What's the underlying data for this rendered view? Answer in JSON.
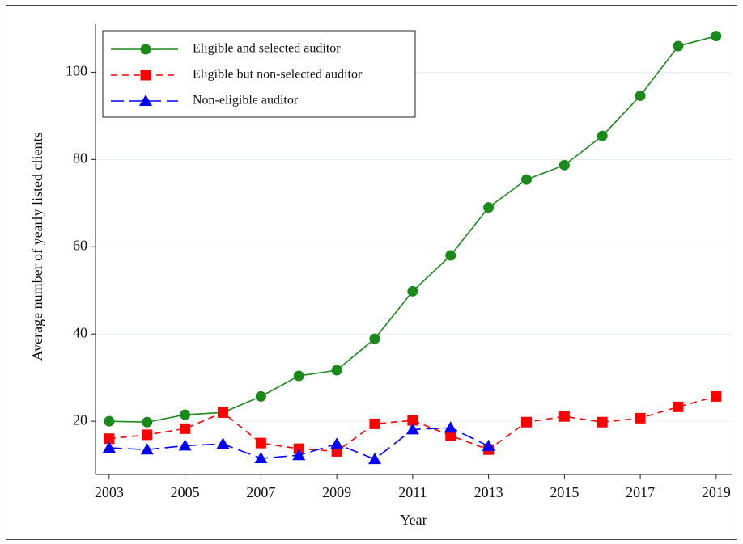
{
  "chart_data": {
    "type": "line",
    "xlabel": "Year",
    "ylabel": "Average number of yearly listed clients",
    "x": [
      2003,
      2004,
      2005,
      2006,
      2007,
      2008,
      2009,
      2010,
      2011,
      2012,
      2013,
      2014,
      2015,
      2016,
      2017,
      2018,
      2019
    ],
    "series": [
      {
        "name": "Eligible and selected auditor",
        "color": "#1a8a1a",
        "dash": "solid",
        "marker": "circle",
        "values": [
          20,
          19.8,
          21.5,
          22,
          25.7,
          30.4,
          31.7,
          38.9,
          49.8,
          58,
          69,
          75.4,
          78.7,
          85.4,
          94.6,
          106,
          108.3
        ]
      },
      {
        "name": "Eligible but non-selected auditor",
        "color": "#ff0000",
        "dash": "dashed",
        "marker": "square",
        "values": [
          16,
          16.9,
          18.3,
          22,
          15,
          13.7,
          13.1,
          19.4,
          20.2,
          16.7,
          13.5,
          19.8,
          21.1,
          19.8,
          20.7,
          23.3,
          25.7
        ]
      },
      {
        "name": "Non-eligible auditor",
        "color": "#0000ff",
        "dash": "longdash",
        "marker": "triangle",
        "values": [
          13.9,
          13.5,
          14.4,
          14.8,
          11.5,
          12.2,
          14.8,
          11.3,
          18.1,
          18.5,
          14.3,
          null,
          null,
          null,
          null,
          null,
          null
        ]
      }
    ],
    "xlim": [
      2002.64,
      2019.43
    ],
    "xticks": [
      2003,
      2005,
      2007,
      2009,
      2011,
      2013,
      2015,
      2017,
      2019
    ],
    "ylim": [
      7.8,
      111
    ],
    "yticks": [
      20,
      40,
      60,
      80,
      100
    ],
    "grid": true,
    "legend": "upper left"
  }
}
